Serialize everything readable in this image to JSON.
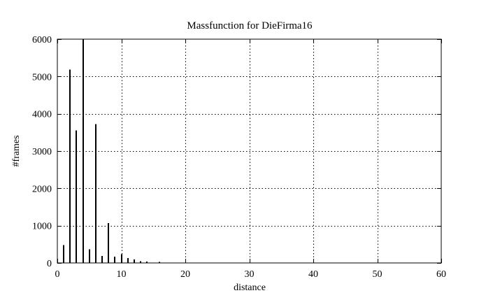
{
  "chart_data": {
    "type": "bar",
    "title": "Massfunction for DieFirma16",
    "xlabel": "distance",
    "ylabel": "#frames",
    "xlim": [
      0,
      60
    ],
    "ylim": [
      0,
      6000
    ],
    "xticks": [
      0,
      10,
      20,
      30,
      40,
      50,
      60
    ],
    "yticks": [
      0,
      1000,
      2000,
      3000,
      4000,
      5000,
      6000
    ],
    "grid": true,
    "legend": "none",
    "bar_color": "#000000",
    "x": [
      1,
      2,
      3,
      4,
      5,
      6,
      7,
      8,
      9,
      10,
      11,
      12,
      13,
      14,
      15,
      16
    ],
    "values": [
      480,
      5180,
      3550,
      6000,
      370,
      3720,
      190,
      1070,
      170,
      230,
      130,
      90,
      50,
      40,
      10,
      30
    ]
  }
}
